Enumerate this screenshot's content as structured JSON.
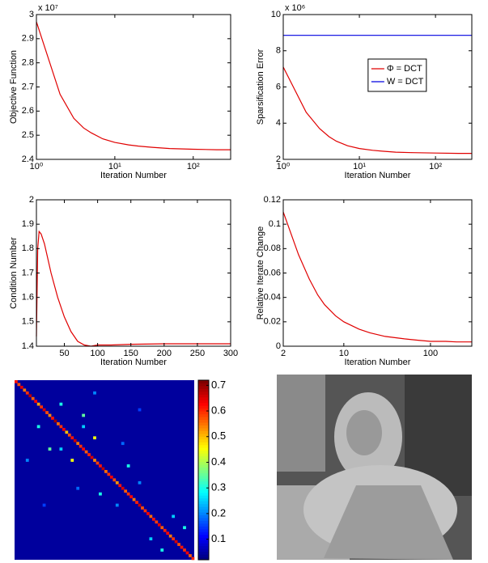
{
  "chart_data": [
    {
      "type": "line",
      "xscale": "log",
      "x": [
        1,
        2,
        3,
        4,
        5,
        7,
        10,
        15,
        20,
        30,
        50,
        100,
        200,
        300
      ],
      "series": [
        {
          "color": "#e00000",
          "values": [
            2.97,
            2.67,
            2.57,
            2.53,
            2.51,
            2.485,
            2.47,
            2.46,
            2.455,
            2.45,
            2.445,
            2.442,
            2.44,
            2.44
          ]
        }
      ],
      "xlim": [
        1,
        300
      ],
      "ylim": [
        2.4,
        3
      ],
      "yticks": [
        2.4,
        2.5,
        2.6,
        2.7,
        2.8,
        2.9,
        3
      ],
      "xticks": [
        {
          "value": 1,
          "label": "10⁰"
        },
        {
          "value": 10,
          "label": "10¹"
        },
        {
          "value": 100,
          "label": "10²"
        }
      ],
      "multiplier": "x 10⁷",
      "ylabel": "Objective Function",
      "xlabel": "Iteration Number"
    },
    {
      "type": "line",
      "xscale": "log",
      "x": [
        1,
        2,
        3,
        4,
        5,
        7,
        10,
        15,
        20,
        30,
        50,
        100,
        200,
        300
      ],
      "series": [
        {
          "name": "Φ = DCT",
          "color": "#e00000",
          "values": [
            7.1,
            4.6,
            3.7,
            3.25,
            3.0,
            2.75,
            2.6,
            2.5,
            2.45,
            2.4,
            2.37,
            2.35,
            2.33,
            2.33
          ]
        },
        {
          "name": "W = DCT",
          "color": "#0000e0",
          "values": [
            8.85,
            8.85,
            8.85,
            8.85,
            8.85,
            8.85,
            8.85,
            8.85,
            8.85,
            8.85,
            8.85,
            8.85,
            8.85,
            8.85
          ]
        }
      ],
      "xlim": [
        1,
        300
      ],
      "ylim": [
        2,
        10
      ],
      "yticks": [
        2,
        4,
        6,
        8,
        10
      ],
      "xticks": [
        {
          "value": 1,
          "label": "10⁰"
        },
        {
          "value": 10,
          "label": "10¹"
        },
        {
          "value": 100,
          "label": "10²"
        }
      ],
      "multiplier": "x 10⁶",
      "ylabel": "Sparsification Error",
      "xlabel": "Iteration Number",
      "legend": "upper-center"
    },
    {
      "type": "line",
      "xscale": "linear",
      "x": [
        8,
        10,
        12,
        15,
        20,
        25,
        30,
        40,
        50,
        60,
        70,
        80,
        90,
        100,
        120,
        150,
        200,
        250,
        300
      ],
      "series": [
        {
          "color": "#e00000",
          "values": [
            1.44,
            1.8,
            1.87,
            1.86,
            1.82,
            1.76,
            1.7,
            1.6,
            1.52,
            1.46,
            1.42,
            1.405,
            1.4,
            1.405,
            1.405,
            1.408,
            1.41,
            1.41,
            1.41
          ]
        }
      ],
      "xlim": [
        8,
        300
      ],
      "ylim": [
        1.4,
        2
      ],
      "yticks": [
        1.4,
        1.5,
        1.6,
        1.7,
        1.8,
        1.9,
        2
      ],
      "xticks": [
        50,
        100,
        150,
        200,
        250,
        300
      ],
      "ylabel": "Condition Number",
      "xlabel": "Iteration Number"
    },
    {
      "type": "line",
      "xscale": "log",
      "x": [
        2,
        3,
        4,
        5,
        6,
        8,
        10,
        15,
        20,
        30,
        50,
        70,
        100,
        150,
        200,
        300
      ],
      "series": [
        {
          "color": "#e00000",
          "values": [
            0.11,
            0.075,
            0.055,
            0.042,
            0.034,
            0.025,
            0.02,
            0.014,
            0.011,
            0.008,
            0.006,
            0.005,
            0.004,
            0.004,
            0.0035,
            0.0035
          ]
        }
      ],
      "xlim": [
        2,
        300
      ],
      "ylim": [
        0,
        0.12
      ],
      "yticks": [
        0,
        0.02,
        0.04,
        0.06,
        0.08,
        0.1,
        0.12
      ],
      "xticks": [
        2,
        10,
        100
      ],
      "ylabel": "Relative Iterate Change",
      "xlabel": "Iteration Number"
    },
    {
      "type": "heatmap",
      "colormap": "jet",
      "background": 0.04,
      "diagonal": [
        0.62,
        0.58,
        0.65,
        0.55,
        0.6,
        0.68,
        0.57,
        0.63,
        0.52,
        0.6,
        0.66,
        0.58,
        0.54,
        0.62,
        0.7,
        0.56,
        0.6,
        0.64,
        0.5,
        0.58,
        0.62,
        0.67,
        0.55,
        0.6,
        0.63,
        0.57,
        0.61,
        0.66,
        0.54,
        0.59,
        0.62,
        0.68,
        0.56,
        0.6,
        0.64,
        0.58,
        0.53,
        0.62,
        0.66,
        0.57,
        0.6,
        0.63,
        0.55,
        0.61,
        0.67,
        0.58,
        0.6,
        0.64,
        0.56,
        0.62,
        0.59,
        0.65,
        0.57,
        0.61,
        0.63,
        0.55,
        0.6,
        0.66,
        0.58,
        0.62,
        0.6,
        0.64,
        0.57,
        0.61
      ],
      "points": [
        {
          "row": 8,
          "col": 16,
          "value": 0.3
        },
        {
          "row": 16,
          "col": 8,
          "value": 0.3
        },
        {
          "row": 12,
          "col": 24,
          "value": 0.35
        },
        {
          "row": 24,
          "col": 12,
          "value": 0.35
        },
        {
          "row": 20,
          "col": 28,
          "value": 0.45
        },
        {
          "row": 28,
          "col": 20,
          "value": 0.45
        },
        {
          "row": 16,
          "col": 24,
          "value": 0.25
        },
        {
          "row": 24,
          "col": 16,
          "value": 0.25
        },
        {
          "row": 30,
          "col": 40,
          "value": 0.3
        },
        {
          "row": 40,
          "col": 30,
          "value": 0.3
        },
        {
          "row": 36,
          "col": 44,
          "value": 0.2
        },
        {
          "row": 44,
          "col": 36,
          "value": 0.2
        },
        {
          "row": 4,
          "col": 28,
          "value": 0.2
        },
        {
          "row": 28,
          "col": 4,
          "value": 0.2
        },
        {
          "row": 48,
          "col": 56,
          "value": 0.25
        },
        {
          "row": 56,
          "col": 48,
          "value": 0.25
        },
        {
          "row": 22,
          "col": 38,
          "value": 0.18
        },
        {
          "row": 38,
          "col": 22,
          "value": 0.18
        },
        {
          "row": 52,
          "col": 60,
          "value": 0.3
        },
        {
          "row": 60,
          "col": 52,
          "value": 0.3
        },
        {
          "row": 10,
          "col": 44,
          "value": 0.15
        },
        {
          "row": 44,
          "col": 10,
          "value": 0.15
        }
      ],
      "clim": [
        0.02,
        0.72
      ],
      "cticks": [
        0.1,
        0.2,
        0.3,
        0.4,
        0.5,
        0.6,
        0.7
      ]
    }
  ]
}
